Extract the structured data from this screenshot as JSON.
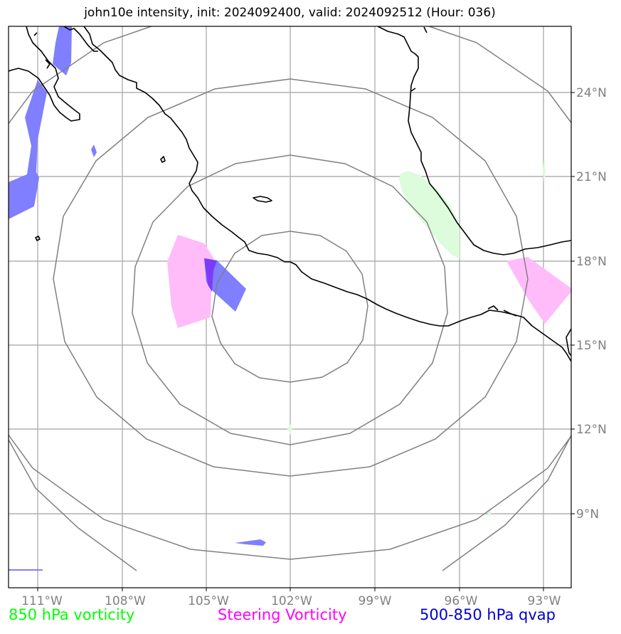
{
  "title": "john10e intensity, init: 2024092400, valid: 2024092512 (Hour: 036)",
  "lon_labels": [
    "111°W",
    "108°W",
    "105°W",
    "102°W",
    "99°W",
    "96°W",
    "93°W"
  ],
  "lat_labels": [
    "24°N",
    "21°N",
    "18°N",
    "15°N",
    "12°N",
    "9°N"
  ],
  "legend": [
    {
      "label": "850 hPa vorticity",
      "color": "#00ff00"
    },
    {
      "label": "Steering Vorticity",
      "color": "#ff00ff"
    },
    {
      "label": "500-850 hPa qvap",
      "color": "#0000cd"
    }
  ],
  "colors": {
    "coastline": "#000000",
    "gridline": "#b0b0b0",
    "range_ring": "#808080",
    "vorticity_850_fill": "#dcfcdc",
    "steering_vorticity_fill": "#ffbcf8",
    "qvap_fill": "#7f7fff",
    "overlap_fill": "#7a3cf8"
  }
}
